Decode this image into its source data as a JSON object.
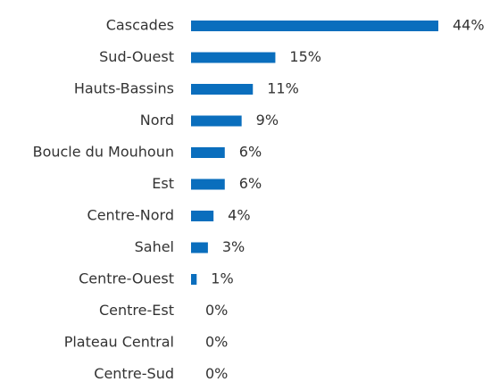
{
  "chart_data": {
    "type": "hbar",
    "categories": [
      "Cascades",
      "Sud-Ouest",
      "Hauts-Bassins",
      "Nord",
      "Boucle du Mouhoun",
      "Est",
      "Centre-Nord",
      "Sahel",
      "Centre-Ouest",
      "Centre-Est",
      "Plateau Central",
      "Centre-Sud"
    ],
    "values": [
      44,
      15,
      11,
      9,
      6,
      6,
      4,
      3,
      1,
      0,
      0,
      0
    ],
    "value_labels": [
      "44%",
      "15%",
      "11%",
      "9%",
      "6%",
      "6%",
      "4%",
      "3%",
      "1%",
      "0%",
      "0%",
      "0%"
    ],
    "color": "#0a6ebd"
  }
}
